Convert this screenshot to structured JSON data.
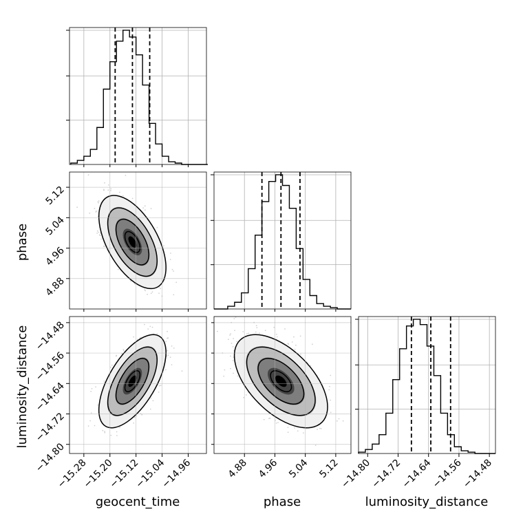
{
  "chart_data": {
    "type": "corner",
    "parameters": [
      "geocent_time",
      "phase",
      "luminosity_distance"
    ],
    "ticks": {
      "geocent_time": [
        "−15.28",
        "−15.20",
        "−15.12",
        "−15.04",
        "−14.96"
      ],
      "phase": [
        "4.88",
        "4.96",
        "5.04",
        "5.12"
      ],
      "luminosity_distance": [
        "−14.80",
        "−14.72",
        "−14.64",
        "−14.56",
        "−14.48"
      ]
    },
    "ranges": {
      "geocent_time": [
        -15.324,
        -14.904
      ],
      "phase": [
        4.8,
        5.16
      ],
      "luminosity_distance": [
        -14.824,
        -14.464
      ]
    },
    "quantiles": {
      "geocent_time": [
        -15.184,
        -15.131,
        -15.078
      ],
      "phase": [
        4.926,
        4.976,
        5.026
      ],
      "luminosity_distance": [
        -14.685,
        -14.634,
        -14.582
      ]
    },
    "histograms": {
      "geocent_time": {
        "bin_width": 0.02,
        "bins_start": -15.32,
        "counts": [
          1,
          3,
          6,
          11,
          27,
          55,
          75,
          90,
          98,
          93,
          80,
          58,
          30,
          15,
          6,
          2,
          1,
          0,
          0,
          0,
          0
        ]
      },
      "phase": {
        "bin_width": 0.018,
        "bins_start": 4.8,
        "counts": [
          0,
          0,
          2,
          5,
          12,
          30,
          55,
          80,
          95,
          100,
          92,
          75,
          45,
          22,
          10,
          4,
          2,
          1,
          0,
          0
        ]
      },
      "luminosity_distance": {
        "bin_width": 0.018,
        "bins_start": -14.824,
        "counts": [
          1,
          3,
          7,
          14,
          30,
          55,
          78,
          95,
          100,
          96,
          80,
          58,
          30,
          14,
          5,
          2,
          1,
          0,
          0,
          0
        ]
      }
    },
    "joint": [
      {
        "x": "geocent_time",
        "y": "phase",
        "mean": [
          -15.131,
          4.976
        ],
        "sd": [
          0.042,
          0.05
        ],
        "rho": -0.55
      },
      {
        "x": "geocent_time",
        "y": "luminosity_distance",
        "mean": [
          -15.131,
          -14.634
        ],
        "sd": [
          0.042,
          0.05
        ],
        "rho": 0.62
      },
      {
        "x": "phase",
        "y": "luminosity_distance",
        "mean": [
          4.976,
          -14.634
        ],
        "sd": [
          0.05,
          0.05
        ],
        "rho": -0.55
      }
    ],
    "grid": true,
    "colors": {
      "line": "#000000",
      "grid": "#b0b0b0",
      "scatter": "#9a9a9a",
      "axes": "#000000"
    }
  }
}
